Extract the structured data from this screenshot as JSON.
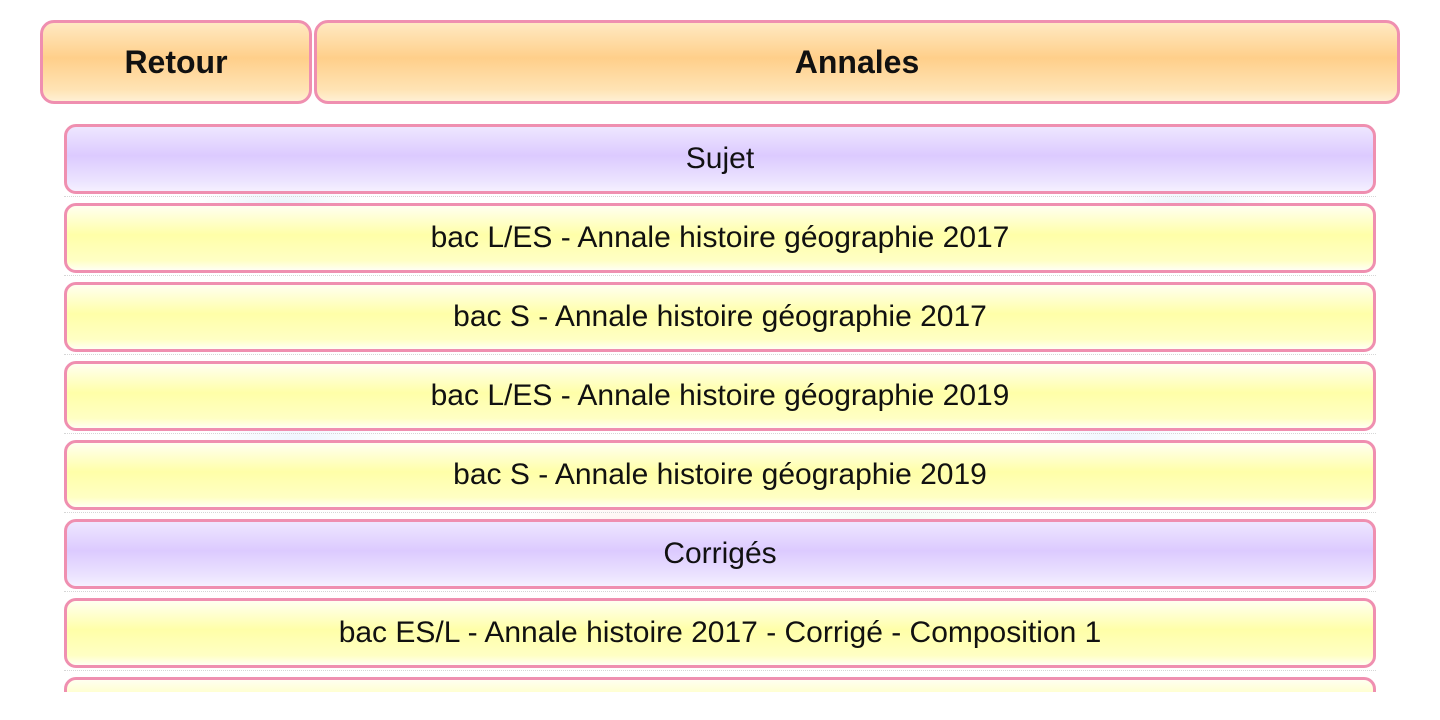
{
  "header": {
    "back_label": "Retour",
    "title": "Annales"
  },
  "list": {
    "rows": [
      {
        "kind": "section",
        "label": "Sujet"
      },
      {
        "kind": "item",
        "label": "bac L/ES - Annale histoire géographie 2017"
      },
      {
        "kind": "item",
        "label": "bac S - Annale histoire géographie 2017"
      },
      {
        "kind": "item",
        "label": "bac L/ES - Annale histoire géographie 2019"
      },
      {
        "kind": "item",
        "label": "bac S - Annale histoire géographie 2019"
      },
      {
        "kind": "section",
        "label": "Corrigés"
      },
      {
        "kind": "item",
        "label": "bac ES/L - Annale histoire 2017 - Corrigé - Composition 1"
      },
      {
        "kind": "item",
        "label": ""
      }
    ]
  },
  "colors": {
    "border_pink": "#ef8fb0",
    "header_orange": "#ffcf8a",
    "section_lavender": "#dccaff",
    "item_yellow": "#ffffa8"
  }
}
